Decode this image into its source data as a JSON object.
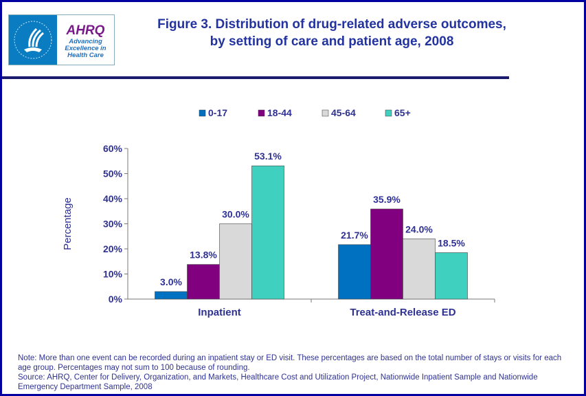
{
  "logo": {
    "hhs": "Department of Health & Human Services USA",
    "ahrq": "AHRQ",
    "tagline": "Advancing Excellence in Health Care"
  },
  "title_line1": "Figure 3. Distribution of drug-related adverse outcomes,",
  "title_line2": "by setting of care and patient age, 2008",
  "chart_data": {
    "type": "bar",
    "title": "Figure 3. Distribution of drug-related adverse outcomes, by setting of care and patient age, 2008",
    "categories": [
      "Inpatient",
      "Treat-and-Release ED"
    ],
    "series": [
      {
        "name": "0-17",
        "values": [
          3.0,
          21.7
        ],
        "color": "#0070c0"
      },
      {
        "name": "18-44",
        "values": [
          13.8,
          35.9
        ],
        "color": "#800080"
      },
      {
        "name": "45-64",
        "values": [
          30.0,
          24.0
        ],
        "color": "#d9d9d9"
      },
      {
        "name": "65+",
        "values": [
          53.1,
          18.5
        ],
        "color": "#40d0c0"
      }
    ],
    "ylabel": "Percentage",
    "ylim": [
      0,
      60
    ],
    "yticks": [
      "0%",
      "10%",
      "20%",
      "30%",
      "40%",
      "50%",
      "60%"
    ],
    "grid": false,
    "legend": "top",
    "label_color": "#2e3192"
  },
  "notes": {
    "note": "Note: More than one event can be recorded during an inpatient stay or ED visit. These percentages are based on the total number of stays or visits for each age group.  Percentages may not sum to 100 because of rounding.",
    "source": "Source: AHRQ, Center for Delivery, Organization, and Markets, Healthcare Cost and Utilization Project, Nationwide Inpatient Sample and Nationwide Emergency Department Sample, 2008"
  }
}
